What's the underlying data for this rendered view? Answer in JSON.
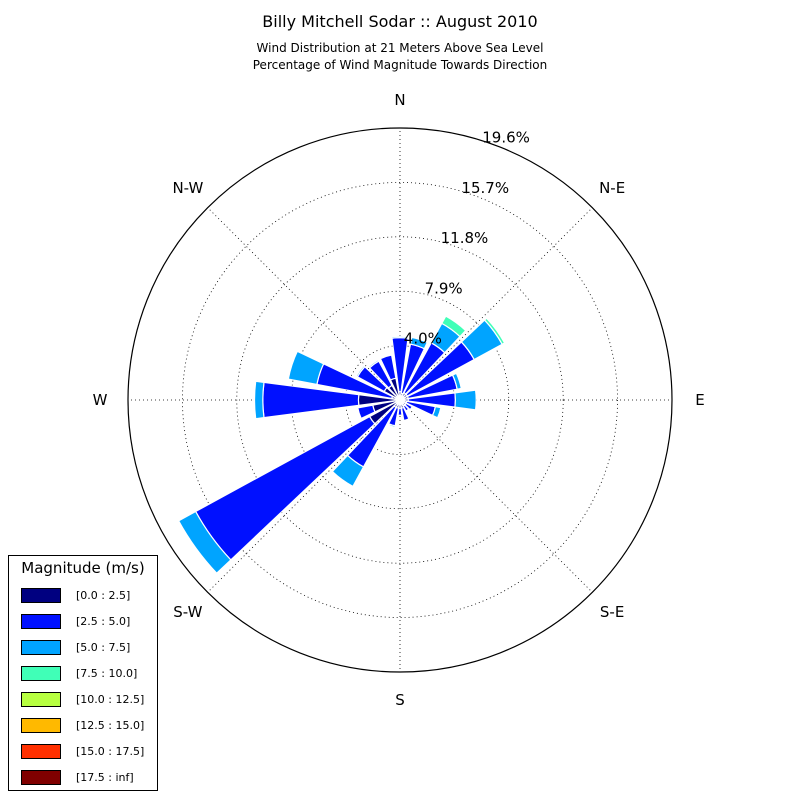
{
  "page": {
    "title": "Billy Mitchell Sodar :: August 2010",
    "subtitle_line1": "Wind Distribution at 21 Meters Above Sea Level",
    "subtitle_line2": "Percentage of Wind Magnitude Towards Direction"
  },
  "legend": {
    "title": "Magnitude (m/s)",
    "items": [
      {
        "label": "[0.0 : 2.5]",
        "color": "#000080"
      },
      {
        "label": "[2.5 : 5.0]",
        "color": "#0010ff"
      },
      {
        "label": "[5.0 : 7.5]",
        "color": "#00a4ff"
      },
      {
        "label": "[7.5 : 10.0]",
        "color": "#40ffb7"
      },
      {
        "label": "[10.0 : 12.5]",
        "color": "#b7ff40"
      },
      {
        "label": "[12.5 : 15.0]",
        "color": "#ffb900"
      },
      {
        "label": "[15.0 : 17.5]",
        "color": "#ff3000"
      },
      {
        "label": "[17.5 : inf]",
        "color": "#800000"
      }
    ]
  },
  "chart_data": {
    "type": "windrose",
    "title": "Billy Mitchell Sodar :: August 2010",
    "subtitle": "Wind Distribution at 21 Meters Above Sea Level / Percentage of Wind Magnitude Towards Direction",
    "direction_labels": [
      {
        "name": "N",
        "angle": 0
      },
      {
        "name": "N-E",
        "angle": 45
      },
      {
        "name": "E",
        "angle": 90
      },
      {
        "name": "S-E",
        "angle": 135
      },
      {
        "name": "S",
        "angle": 180
      },
      {
        "name": "S-W",
        "angle": 225
      },
      {
        "name": "W",
        "angle": 270
      },
      {
        "name": "N-W",
        "angle": 315
      }
    ],
    "radial_ticks": [
      "4.0%",
      "7.9%",
      "11.8%",
      "15.7%",
      "19.6%"
    ],
    "radial_tick_values": [
      3.93,
      7.85,
      11.78,
      15.7,
      19.63
    ],
    "rmax": 19.63,
    "bin_colors": [
      "#000080",
      "#0010ff",
      "#00a4ff",
      "#40ffb7",
      "#b7ff40",
      "#ffb900",
      "#ff3000",
      "#800000"
    ],
    "sector_width_deg": 18,
    "sectors": [
      {
        "direction": 0,
        "cumulative": [
          0.6,
          4.5,
          4.6
        ]
      },
      {
        "direction": 18,
        "cumulative": [
          0.5,
          4.1,
          4.6
        ]
      },
      {
        "direction": 36,
        "cumulative": [
          0.6,
          4.7,
          6.3,
          6.9
        ]
      },
      {
        "direction": 54,
        "cumulative": [
          0.6,
          6.1,
          8.4,
          8.6
        ]
      },
      {
        "direction": 72,
        "cumulative": [
          0.6,
          4.2,
          4.5
        ]
      },
      {
        "direction": 90,
        "cumulative": [
          0.6,
          4.0,
          5.5
        ]
      },
      {
        "direction": 108,
        "cumulative": [
          0.5,
          2.6,
          3.0
        ]
      },
      {
        "direction": 126,
        "cumulative": [
          0.5,
          1.0
        ]
      },
      {
        "direction": 144,
        "cumulative": [
          0.5,
          0.9
        ]
      },
      {
        "direction": 162,
        "cumulative": [
          0.6,
          1.5
        ]
      },
      {
        "direction": 180,
        "cumulative": [
          0.6,
          1.1
        ]
      },
      {
        "direction": 198,
        "cumulative": [
          0.6,
          1.9,
          2.0
        ]
      },
      {
        "direction": 216,
        "cumulative": [
          0.6,
          5.5,
          7.1
        ]
      },
      {
        "direction": 234,
        "cumulative": [
          2.5,
          16.8,
          18.2
        ]
      },
      {
        "direction": 252,
        "cumulative": [
          2.0,
          3.1
        ]
      },
      {
        "direction": 270,
        "cumulative": [
          3.0,
          9.9,
          10.5
        ]
      },
      {
        "direction": 288,
        "cumulative": [
          0.6,
          6.1,
          8.2
        ]
      },
      {
        "direction": 306,
        "cumulative": [
          1.3,
          3.5,
          3.6
        ]
      },
      {
        "direction": 324,
        "cumulative": [
          1.2,
          3.2,
          3.3
        ]
      },
      {
        "direction": 342,
        "cumulative": [
          1.6,
          3.3
        ]
      }
    ],
    "grid": true,
    "legend_position": "lower-left"
  }
}
